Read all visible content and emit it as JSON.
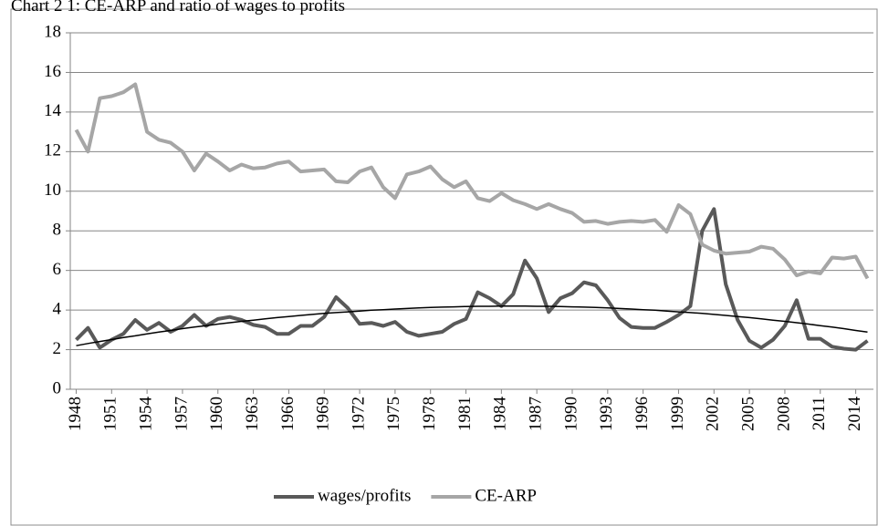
{
  "chart_data": {
    "type": "line",
    "title": "Chart 2 1: CE-ARP and ratio of wages to profits",
    "x": [
      1948,
      1949,
      1950,
      1951,
      1952,
      1953,
      1954,
      1955,
      1956,
      1957,
      1958,
      1959,
      1960,
      1961,
      1962,
      1963,
      1964,
      1965,
      1966,
      1967,
      1968,
      1969,
      1970,
      1971,
      1972,
      1973,
      1974,
      1975,
      1976,
      1977,
      1978,
      1979,
      1980,
      1981,
      1982,
      1983,
      1984,
      1985,
      1986,
      1987,
      1988,
      1989,
      1990,
      1991,
      1992,
      1993,
      1994,
      1995,
      1996,
      1997,
      1998,
      1999,
      2000,
      2001,
      2002,
      2003,
      2004,
      2005,
      2006,
      2007,
      2008,
      2009,
      2010,
      2011,
      2012,
      2013,
      2014,
      2015
    ],
    "xlim": [
      1947.5,
      2015.5
    ],
    "xticks": [
      1948,
      1951,
      1954,
      1957,
      1960,
      1963,
      1966,
      1969,
      1972,
      1975,
      1978,
      1981,
      1984,
      1987,
      1990,
      1993,
      1996,
      1999,
      2002,
      2005,
      2008,
      2011,
      2014
    ],
    "ylim": [
      0,
      18
    ],
    "yticks": [
      0,
      2,
      4,
      6,
      8,
      10,
      12,
      14,
      16,
      18
    ],
    "grid": true,
    "legend": "bottom",
    "series": [
      {
        "name": "wages/profits",
        "color": "#595959",
        "values": [
          2.5,
          3.1,
          2.1,
          2.5,
          2.8,
          3.5,
          3.0,
          3.35,
          2.9,
          3.2,
          3.75,
          3.2,
          3.55,
          3.65,
          3.5,
          3.25,
          3.15,
          2.8,
          2.8,
          3.2,
          3.2,
          3.65,
          4.65,
          4.1,
          3.3,
          3.35,
          3.2,
          3.4,
          2.9,
          2.7,
          2.8,
          2.9,
          3.3,
          3.55,
          4.9,
          4.6,
          4.2,
          4.8,
          6.5,
          5.6,
          3.9,
          4.6,
          4.85,
          5.4,
          5.25,
          4.5,
          3.6,
          3.15,
          3.1,
          3.1,
          3.4,
          3.75,
          4.2,
          8.0,
          9.1,
          5.3,
          3.5,
          2.45,
          2.1,
          2.5,
          3.2,
          4.5,
          2.55,
          2.55,
          2.15,
          2.05,
          2.0,
          2.45
        ]
      },
      {
        "name": "CE-ARP",
        "color": "#a6a6a6",
        "values": [
          13.1,
          12.0,
          14.7,
          14.8,
          15.0,
          15.4,
          13.0,
          12.6,
          12.45,
          12.0,
          11.05,
          11.9,
          11.5,
          11.05,
          11.35,
          11.15,
          11.2,
          11.4,
          11.5,
          11.0,
          11.05,
          11.1,
          10.5,
          10.45,
          11.0,
          11.2,
          10.2,
          9.65,
          10.85,
          11.0,
          11.25,
          10.6,
          10.2,
          10.5,
          9.65,
          9.5,
          9.9,
          9.55,
          9.35,
          9.1,
          9.35,
          9.1,
          8.9,
          8.45,
          8.5,
          8.35,
          8.45,
          8.5,
          8.45,
          8.55,
          7.95,
          9.3,
          8.85,
          7.3,
          7.0,
          6.85,
          6.9,
          6.95,
          7.2,
          7.1,
          6.55,
          5.75,
          5.95,
          5.85,
          6.65,
          6.6,
          6.7,
          5.6
        ]
      },
      {
        "color": "#000000",
        "values": [
          2.2,
          2.31,
          2.41,
          2.51,
          2.61,
          2.7,
          2.8,
          2.89,
          2.97,
          3.06,
          3.14,
          3.21,
          3.29,
          3.36,
          3.43,
          3.49,
          3.56,
          3.62,
          3.67,
          3.73,
          3.78,
          3.83,
          3.87,
          3.91,
          3.95,
          3.99,
          4.02,
          4.05,
          4.08,
          4.11,
          4.13,
          4.15,
          4.16,
          4.18,
          4.19,
          4.19,
          4.2,
          4.2,
          4.2,
          4.19,
          4.19,
          4.18,
          4.16,
          4.15,
          4.13,
          4.11,
          4.08,
          4.05,
          4.02,
          3.99,
          3.95,
          3.91,
          3.87,
          3.83,
          3.78,
          3.73,
          3.67,
          3.62,
          3.56,
          3.49,
          3.43,
          3.36,
          3.29,
          3.21,
          3.14,
          3.06,
          2.97,
          2.89
        ]
      }
    ]
  }
}
